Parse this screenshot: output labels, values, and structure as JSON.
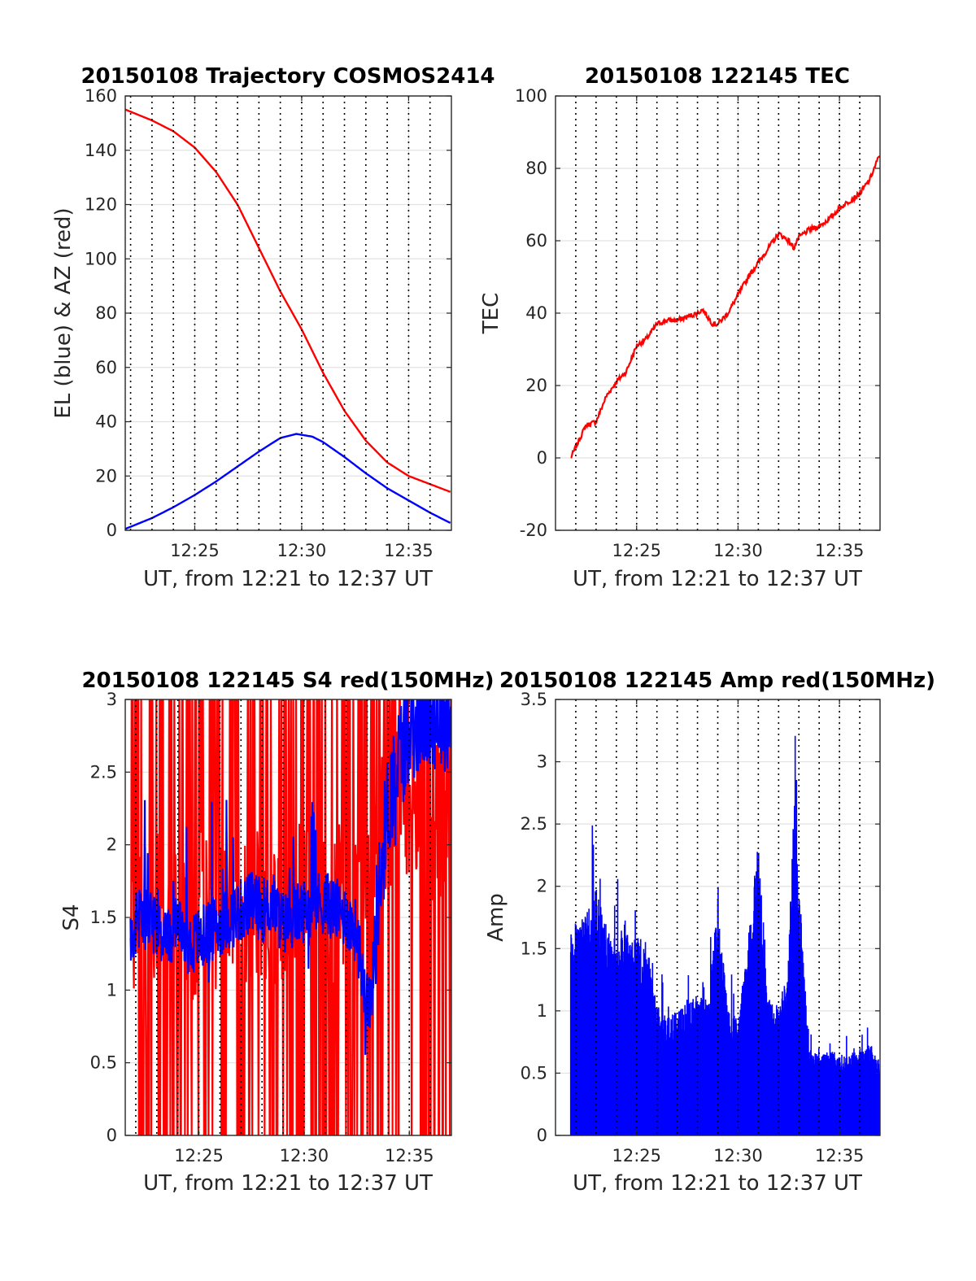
{
  "chart_data": [
    {
      "id": "trajectory",
      "type": "line",
      "title": "20150108 Trajectory COSMOS2414",
      "xlabel": "UT, from 12:21 to 12:37 UT",
      "ylabel": "EL (blue) & AZ (red)",
      "xlim": [
        "12:21:45",
        "12:37:00"
      ],
      "ylim": [
        0,
        160
      ],
      "xticks": [
        "12:25",
        "12:30",
        "12:35"
      ],
      "yticks": [
        0,
        20,
        40,
        60,
        80,
        100,
        120,
        140,
        160
      ],
      "grid": true,
      "minute_lines": "dotted",
      "series": [
        {
          "color": "#ff0000",
          "x": [
            "12:21:45",
            "12:23:00",
            "12:24:00",
            "12:25:00",
            "12:26:00",
            "12:27:00",
            "12:28:00",
            "12:29:00",
            "12:30:00",
            "12:31:00",
            "12:32:00",
            "12:33:00",
            "12:34:00",
            "12:35:00",
            "12:36:00",
            "12:37:00"
          ],
          "y": [
            155,
            151,
            147,
            141,
            132,
            120,
            104,
            88,
            74,
            58,
            44,
            33,
            25,
            20,
            17,
            14
          ]
        },
        {
          "color": "#0000ff",
          "x": [
            "12:21:45",
            "12:23:00",
            "12:24:00",
            "12:25:00",
            "12:26:00",
            "12:27:00",
            "12:28:00",
            "12:29:00",
            "12:29:45",
            "12:30:30",
            "12:31:00",
            "12:32:00",
            "12:33:00",
            "12:34:00",
            "12:35:00",
            "12:36:00",
            "12:37:00"
          ],
          "y": [
            0.5,
            4.5,
            8.5,
            13,
            18,
            23.5,
            29,
            34,
            35.5,
            34.5,
            32.5,
            27,
            21,
            15.5,
            11,
            6.5,
            2.5
          ]
        }
      ]
    },
    {
      "id": "tec",
      "type": "line",
      "title": "20150108 122145 TEC",
      "xlabel": "UT, from 12:21 to 12:37 UT",
      "ylabel": "TEC",
      "xlim": [
        "12:21:00",
        "12:37:00"
      ],
      "ylim": [
        -20,
        100
      ],
      "xticks": [
        "12:25",
        "12:30",
        "12:35"
      ],
      "yticks": [
        -20,
        0,
        20,
        40,
        60,
        80,
        100
      ],
      "grid": true,
      "minute_lines": "dotted",
      "series": [
        {
          "color": "#ff0000",
          "x": [
            "12:21:45",
            "12:22:00",
            "12:22:30",
            "12:23:00",
            "12:23:30",
            "12:24:00",
            "12:24:30",
            "12:25:00",
            "12:25:30",
            "12:26:00",
            "12:26:30",
            "12:27:00",
            "12:27:30",
            "12:28:00",
            "12:28:15",
            "12:28:45",
            "12:29:00",
            "12:29:30",
            "12:30:00",
            "12:30:30",
            "12:31:00",
            "12:31:30",
            "12:32:00",
            "12:32:30",
            "12:32:45",
            "12:33:00",
            "12:33:30",
            "12:34:00",
            "12:34:30",
            "12:35:00",
            "12:35:30",
            "12:36:00",
            "12:36:30",
            "12:37:00"
          ],
          "y": [
            0,
            3,
            9,
            10,
            17,
            21,
            24,
            31,
            33,
            37,
            38,
            38,
            39,
            40,
            41,
            37,
            37,
            40,
            45,
            50,
            54,
            58,
            62,
            60,
            58,
            61,
            63,
            64,
            66,
            69,
            71,
            73,
            77,
            84
          ]
        }
      ]
    },
    {
      "id": "s4",
      "type": "line",
      "title": "20150108 122145 S4 red(150MHz)",
      "xlabel": "UT, from 12:21 to 12:37 UT",
      "ylabel": "S4",
      "xlim": [
        "12:21:30",
        "12:37:00"
      ],
      "ylim": [
        0,
        3
      ],
      "xticks": [
        "12:25",
        "12:30",
        "12:35"
      ],
      "yticks": [
        0,
        0.5,
        1,
        1.5,
        2,
        2.5,
        3
      ],
      "grid": true,
      "minute_lines": "dotted",
      "series": [
        {
          "color": "#ff0000",
          "style": "clipped-spikes",
          "x": [
            "12:21:45",
            "12:22:30",
            "12:23:30",
            "12:24:30",
            "12:25:30",
            "12:26:30",
            "12:27:30",
            "12:28:30",
            "12:29:30",
            "12:30:30",
            "12:31:30",
            "12:32:30",
            "12:33:00",
            "12:34:00",
            "12:35:00",
            "12:36:00",
            "12:37:00"
          ],
          "y": [
            1.5,
            1.5,
            1.5,
            1.5,
            1.5,
            1.5,
            1.6,
            1.6,
            1.6,
            1.7,
            1.6,
            1.6,
            2.0,
            2.2,
            2.2,
            2.2,
            2.2
          ]
        },
        {
          "color": "#0000ff",
          "x": [
            "12:21:45",
            "12:22:00",
            "12:22:30",
            "12:23:00",
            "12:23:30",
            "12:24:00",
            "12:24:30",
            "12:25:00",
            "12:25:30",
            "12:26:00",
            "12:26:30",
            "12:27:00",
            "12:27:30",
            "12:28:00",
            "12:28:30",
            "12:29:00",
            "12:29:30",
            "12:30:00",
            "12:30:30",
            "12:31:00",
            "12:31:30",
            "12:32:00",
            "12:32:30",
            "12:32:50",
            "12:33:10",
            "12:33:30",
            "12:34:00",
            "12:34:30",
            "12:35:00",
            "12:35:30",
            "12:36:00",
            "12:36:30",
            "12:37:00"
          ],
          "y": [
            1.35,
            1.45,
            1.5,
            1.4,
            1.35,
            1.45,
            1.3,
            1.35,
            1.4,
            1.45,
            1.5,
            1.55,
            1.6,
            1.55,
            1.6,
            1.45,
            1.5,
            1.55,
            1.6,
            1.6,
            1.55,
            1.5,
            1.4,
            1.05,
            0.9,
            1.6,
            2.3,
            2.6,
            2.8,
            2.9,
            2.9,
            2.9,
            2.9
          ]
        }
      ]
    },
    {
      "id": "amp",
      "type": "area",
      "title": "20150108 122145 Amp red(150MHz)",
      "xlabel": "UT, from 12:21 to 12:37 UT",
      "ylabel": "Amp",
      "xlim": [
        "12:21:00",
        "12:37:00"
      ],
      "ylim": [
        0,
        3.5
      ],
      "xticks": [
        "12:25",
        "12:30",
        "12:35"
      ],
      "yticks": [
        0,
        0.5,
        1,
        1.5,
        2,
        2.5,
        3,
        3.5
      ],
      "grid": true,
      "minute_lines": "dotted",
      "series": [
        {
          "color": "#0000ff",
          "x": [
            "12:21:45",
            "12:22:00",
            "12:22:30",
            "12:23:00",
            "12:23:30",
            "12:24:00",
            "12:24:30",
            "12:25:00",
            "12:25:30",
            "12:26:00",
            "12:26:30",
            "12:27:00",
            "12:27:30",
            "12:28:00",
            "12:28:30",
            "12:29:00",
            "12:29:30",
            "12:30:00",
            "12:30:30",
            "12:31:00",
            "12:31:30",
            "12:32:00",
            "12:32:30",
            "12:32:45",
            "12:33:00",
            "12:33:30",
            "12:34:00",
            "12:34:30",
            "12:35:00",
            "12:35:30",
            "12:36:00",
            "12:36:30",
            "12:37:00"
          ],
          "y": [
            1.65,
            1.75,
            1.8,
            2.0,
            1.7,
            1.6,
            1.75,
            1.6,
            1.55,
            1.05,
            0.95,
            1.0,
            1.1,
            1.15,
            1.05,
            1.9,
            1.0,
            0.95,
            1.55,
            2.4,
            1.1,
            1.05,
            1.45,
            2.85,
            1.95,
            0.7,
            0.65,
            0.7,
            0.65,
            0.65,
            0.7,
            0.75,
            0.6
          ]
        }
      ]
    }
  ]
}
